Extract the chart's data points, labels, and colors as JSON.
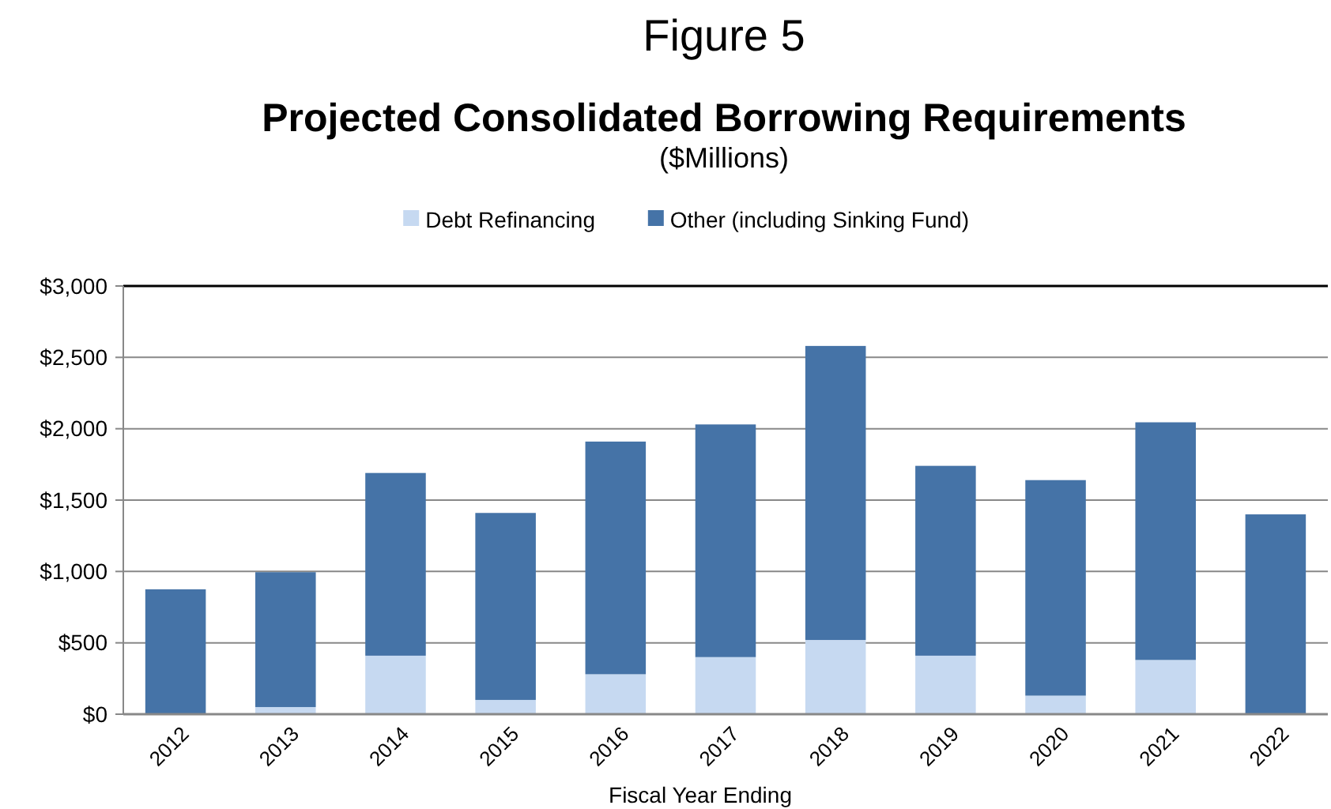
{
  "chart_data": {
    "type": "bar",
    "title": "Figure 5",
    "subtitle": "Projected Consolidated Borrowing Requirements",
    "annotations": [
      "($Millions)"
    ],
    "xlabel": "Fiscal Year Ending",
    "categories": [
      "2012",
      "2013",
      "2014",
      "2015",
      "2016",
      "2017",
      "2018",
      "2019",
      "2020",
      "2021",
      "2022"
    ],
    "stacked": true,
    "legend": "top",
    "grid": "y",
    "series": [
      {
        "name": "Debt Refinancing",
        "color": "#c6d9f1",
        "values": [
          0,
          50,
          410,
          100,
          280,
          400,
          520,
          410,
          130,
          380,
          0
        ]
      },
      {
        "name": "Other (including Sinking Fund)",
        "color": "#4573a7",
        "values": [
          875,
          945,
          1280,
          1310,
          1630,
          1630,
          2060,
          1330,
          1510,
          1665,
          1400
        ]
      }
    ],
    "ylim": [
      0,
      3000
    ],
    "yticks": [
      {
        "value": 0,
        "label": "$0"
      },
      {
        "value": 500,
        "label": "$500"
      },
      {
        "value": 1000,
        "label": "$1,000"
      },
      {
        "value": 1500,
        "label": "$1,500"
      },
      {
        "value": 2000,
        "label": "$2,000"
      },
      {
        "value": 2500,
        "label": "$2,500"
      },
      {
        "value": 3000,
        "label": "$3,000"
      }
    ]
  }
}
